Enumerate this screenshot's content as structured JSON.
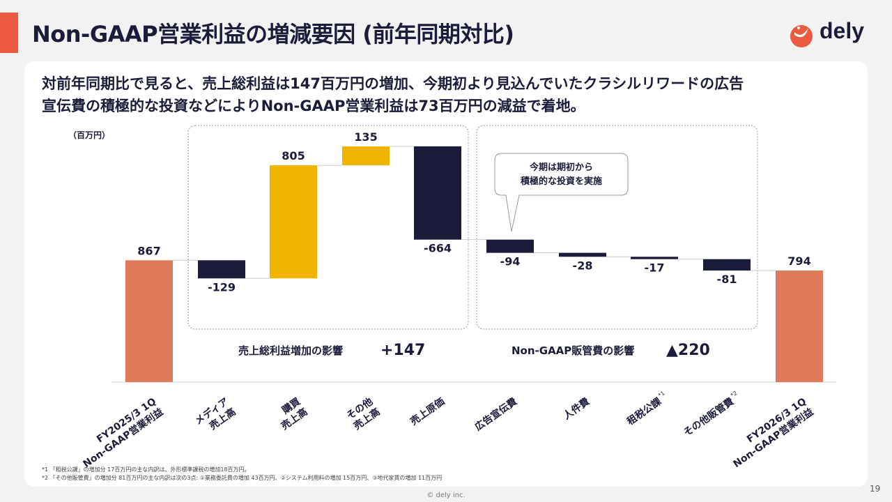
{
  "header": {
    "title": "Non-GAAP営業利益の増減要因 (前年同期対比)",
    "logo_text": "dely",
    "colors": {
      "accent": "#ec5b3f",
      "navy": "#1b1b3a"
    }
  },
  "summary": {
    "line1": "対前年同期比で見ると、売上総利益は147百万円の増加、今期初より見込んでいたクラシルリワードの広告",
    "line2": "宣伝費の積極的な投資などによりNon-GAAP営業利益は73百万円の減益で着地。"
  },
  "chart_data": {
    "type": "bar",
    "subtype": "waterfall",
    "unit_label": "（百万円）",
    "categories": [
      "FY2025/3 1Q\nNon-GAAP営業利益",
      "メディア\n売上高",
      "購買\n売上高",
      "その他\n売上高",
      "売上原価",
      "広告宣伝費",
      "人件費",
      "租税公課",
      "その他販管費",
      "FY2026/3 1Q\nNon-GAAP営業利益"
    ],
    "category_superscripts": [
      "",
      "",
      "",
      "",
      "",
      "",
      "",
      "*1",
      "*2",
      ""
    ],
    "values": [
      867,
      -129,
      805,
      135,
      -664,
      -94,
      -28,
      -17,
      -81,
      794
    ],
    "value_labels": [
      "867",
      "-129",
      "805",
      "135",
      "-664",
      "-94",
      "-28",
      "-17",
      "-81",
      "794"
    ],
    "kinds": [
      "total",
      "delta",
      "delta",
      "delta",
      "delta",
      "delta",
      "delta",
      "delta",
      "delta",
      "total"
    ],
    "colors": {
      "total": "#df7a5a",
      "increase": "#f0b400",
      "decrease": "#1b1b3a"
    },
    "groups": [
      {
        "label": "売上総利益増加の影響",
        "value": "+147",
        "start": 1,
        "end": 4
      },
      {
        "label": "Non-GAAP販管費の影響",
        "value": "▲220",
        "start": 5,
        "end": 8
      }
    ],
    "callout": "今期は期初から\n積極的な投資を実施",
    "callout_target": 5
  },
  "footnotes": {
    "note1": "*1 「租税公課」の増加分 17百万円の主な内訳は、外形標準課税の増加18百万円。",
    "note2": "*2 「その他販管費」の増加分 81百万円の主な内訳は次の3点: ①業務委託費の増加 43百万円、②システム利用料の増加 15百万円、③地代家賃の増加 11百万円"
  },
  "footer": {
    "copyright": "© dely inc.",
    "page_number": "19"
  }
}
